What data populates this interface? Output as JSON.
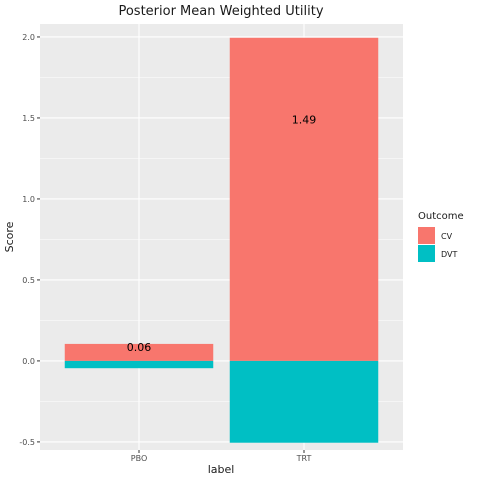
{
  "chart_data": {
    "type": "bar",
    "stacked": true,
    "title": "Posterior Mean Weighted Utility",
    "xlabel": "label",
    "ylabel": "Score",
    "categories": [
      "PBO",
      "TRT"
    ],
    "series": [
      {
        "name": "CV",
        "color": "#F8766D",
        "values": [
          0.105,
          1.995
        ]
      },
      {
        "name": "DVT",
        "color": "#00BFC4",
        "values": [
          -0.045,
          -0.505
        ]
      }
    ],
    "data_labels": [
      {
        "category": "PBO",
        "text": "0.06",
        "y": 0.085
      },
      {
        "category": "TRT",
        "text": "1.49",
        "y": 1.49
      }
    ],
    "ylim": [
      -0.55,
      2.08
    ],
    "yticks": [
      -0.5,
      0.0,
      0.5,
      1.0,
      1.5,
      2.0
    ],
    "ytick_labels": [
      "-0.5",
      "0.0",
      "0.5",
      "1.0",
      "1.5",
      "2.0"
    ],
    "legend": {
      "title": "Outcome",
      "position": "right"
    },
    "grid": true
  }
}
